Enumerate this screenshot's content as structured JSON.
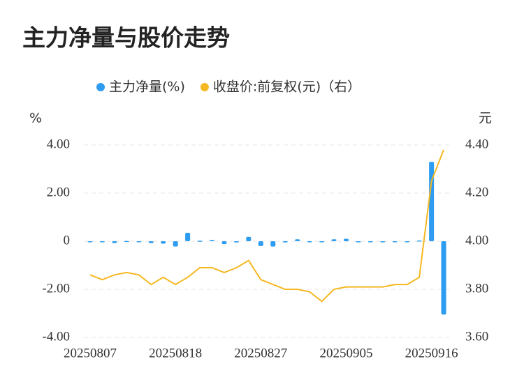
{
  "chart_data": {
    "type": "bar-line",
    "title": "主力净量与股价走势",
    "y_label": "%",
    "y2_label": "元",
    "categories": [
      "20250807",
      null,
      null,
      null,
      null,
      null,
      null,
      "20250818",
      null,
      null,
      null,
      null,
      null,
      null,
      "20250827",
      null,
      null,
      null,
      null,
      null,
      null,
      "20250905",
      null,
      null,
      null,
      null,
      null,
      null,
      "20250916",
      null
    ],
    "series": [
      {
        "name": "主力净量(%)",
        "type": "bar",
        "color": "#2e9cf0",
        "axis": "y",
        "values": [
          -0.02,
          -0.03,
          -0.08,
          0.01,
          -0.03,
          -0.08,
          -0.1,
          -0.22,
          0.35,
          0.02,
          0.05,
          -0.12,
          -0.05,
          0.18,
          -0.2,
          -0.22,
          -0.05,
          0.08,
          -0.03,
          -0.04,
          0.08,
          0.1,
          -0.03,
          -0.02,
          -0.02,
          -0.02,
          -0.03,
          0.03,
          3.3,
          -3.05
        ]
      },
      {
        "name": "收盘价:前复权(元)（右）",
        "type": "line",
        "color": "#f5b820",
        "axis": "y2",
        "values": [
          3.86,
          3.84,
          3.86,
          3.87,
          3.86,
          3.82,
          3.85,
          3.82,
          3.85,
          3.89,
          3.89,
          3.87,
          3.89,
          3.92,
          3.84,
          3.82,
          3.8,
          3.8,
          3.79,
          3.75,
          3.8,
          3.81,
          3.81,
          3.81,
          3.81,
          3.82,
          3.82,
          3.85,
          4.25,
          4.38
        ]
      }
    ],
    "ylim": [
      -4,
      4
    ],
    "yticks": [
      {
        "value": 4,
        "label": "4.00"
      },
      {
        "value": 2,
        "label": "2.00"
      },
      0,
      {
        "value": -2,
        "label": "-2.00"
      },
      {
        "value": -4,
        "label": "-4.00"
      }
    ],
    "y2lim": [
      3.6,
      4.4
    ],
    "y2ticks": [
      {
        "value": 4.4,
        "label": "4.40"
      },
      {
        "value": 4.2,
        "label": "4.20"
      },
      {
        "value": 4,
        "label": "4.00"
      },
      {
        "value": 3.8,
        "label": "3.80"
      },
      {
        "value": 3.6,
        "label": "3.60"
      }
    ],
    "grid": true
  }
}
